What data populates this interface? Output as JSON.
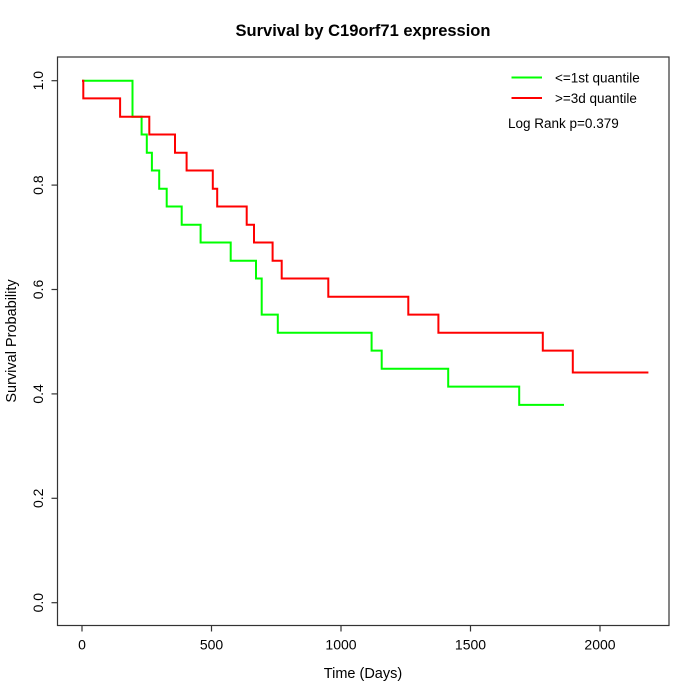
{
  "title": "Survival by C19orf71 expression",
  "chart_data": {
    "type": "line",
    "subtype": "kaplan-meier-step",
    "title": "Survival by C19orf71 expression",
    "xlabel": "Time (Days)",
    "ylabel": "Survival Probability",
    "xlim": [
      0,
      2250
    ],
    "ylim": [
      0.0,
      1.0
    ],
    "xticks": [
      0,
      500,
      1000,
      1500,
      2000
    ],
    "xtick_labels": [
      "0",
      "500",
      "1000",
      "1500",
      "2000"
    ],
    "yticks": [
      0.0,
      0.2,
      0.4,
      0.6,
      0.8,
      1.0
    ],
    "ytick_labels": [
      "0.0",
      "0.2",
      "0.4",
      "0.6",
      "0.8",
      "1.0"
    ],
    "grid": false,
    "legend_position": "top-right",
    "annotation": "Log Rank p=0.379",
    "series": [
      {
        "name": "<=1st quantile",
        "color": "#00ff00",
        "end_time": 1861,
        "steps": [
          [
            0,
            1.0
          ],
          [
            195,
            0.931
          ],
          [
            230,
            0.897
          ],
          [
            250,
            0.862
          ],
          [
            270,
            0.828
          ],
          [
            298,
            0.793
          ],
          [
            327,
            0.759
          ],
          [
            385,
            0.724
          ],
          [
            458,
            0.69
          ],
          [
            574,
            0.655
          ],
          [
            672,
            0.621
          ],
          [
            694,
            0.552
          ],
          [
            756,
            0.517
          ],
          [
            1118,
            0.483
          ],
          [
            1157,
            0.448
          ],
          [
            1414,
            0.414
          ],
          [
            1688,
            0.379
          ]
        ]
      },
      {
        "name": ">=3d quantile",
        "color": "#ff0000",
        "end_time": 2187,
        "steps": [
          [
            0,
            1.0
          ],
          [
            5,
            0.966
          ],
          [
            147,
            0.931
          ],
          [
            260,
            0.897
          ],
          [
            359,
            0.862
          ],
          [
            404,
            0.828
          ],
          [
            505,
            0.793
          ],
          [
            522,
            0.759
          ],
          [
            636,
            0.724
          ],
          [
            664,
            0.69
          ],
          [
            736,
            0.655
          ],
          [
            771,
            0.621
          ],
          [
            951,
            0.586
          ],
          [
            1260,
            0.552
          ],
          [
            1376,
            0.517
          ],
          [
            1779,
            0.483
          ],
          [
            1895,
            0.441
          ]
        ]
      }
    ]
  },
  "legend": {
    "items": [
      {
        "label": "<=1st quantile",
        "color": "#00ff00"
      },
      {
        "label": ">=3d quantile",
        "color": "#ff0000"
      }
    ],
    "p_value": "Log Rank p=0.379"
  },
  "colors": {
    "curve_first_quantile": "#00ff00",
    "curve_third_quantile": "#ff0000",
    "axis": "#333333",
    "text": "#000000",
    "background": "#ffffff"
  }
}
